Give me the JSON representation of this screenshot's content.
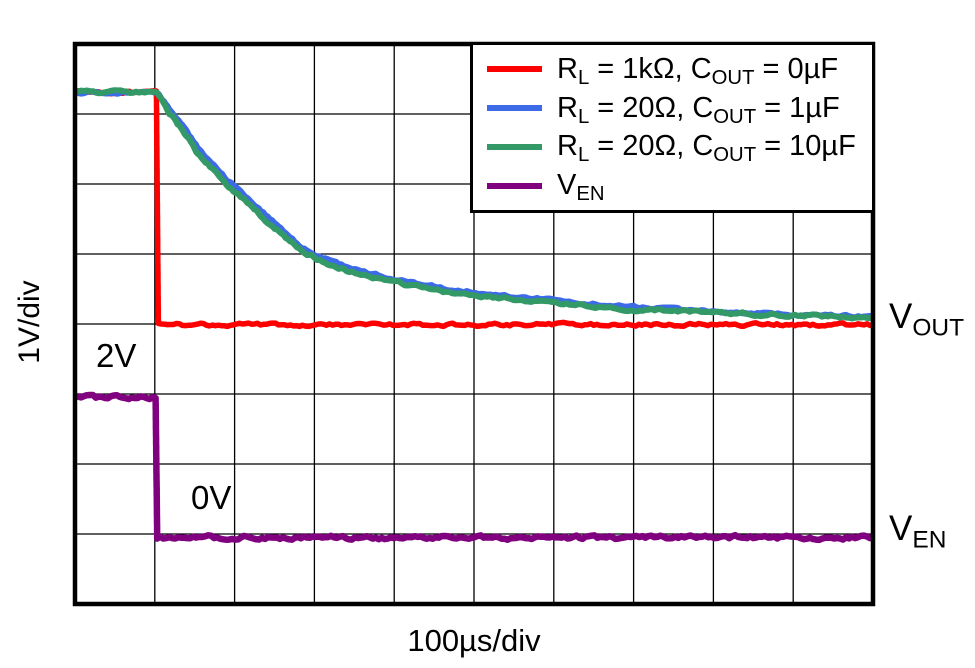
{
  "figure": {
    "ylabel": "1V/div",
    "xlabel": "100µs/div",
    "en_high_label": "2V",
    "en_low_label": "0V",
    "vout_label": {
      "base": "V",
      "sub": "OUT"
    },
    "ven_label": {
      "base": "V",
      "sub": "EN"
    }
  },
  "chart_data": {
    "type": "line",
    "title": "",
    "xlabel": "100µs/div",
    "ylabel": "1V/div",
    "x_divisions": 10,
    "y_divisions": 8,
    "time_per_div": "100µs",
    "volts_per_div": "1V",
    "grid": true,
    "legend_position": "top-right",
    "background": "#ffffff",
    "grid_color": "#000000",
    "enable_step_time_div": 1.0,
    "vout_initial_volts": 3.3,
    "ven_high_volts": 2.0,
    "ven_low_volts": 0.0,
    "series": [
      {
        "id": "vout-rl1k-cout0uf",
        "name": "RL = 1kΩ, COUT = 0µF",
        "label_segments": [
          {
            "t": "R"
          },
          {
            "t": "L",
            "sub": true
          },
          {
            "t": " = 1kΩ, C"
          },
          {
            "t": "OUT",
            "sub": true
          },
          {
            "t": " = 0µF"
          }
        ],
        "color": "#FF0000",
        "stroke_width": 5.5,
        "noise": 2.4,
        "zero_div_from_top": 4.01,
        "points_div_volts": [
          [
            0,
            3.32
          ],
          [
            1.02,
            3.32
          ],
          [
            1.045,
            0.0
          ],
          [
            10,
            0.0
          ]
        ]
      },
      {
        "id": "vout-rl20-cout1uf",
        "name": "RL = 20Ω, COUT = 1µF",
        "label_segments": [
          {
            "t": "R"
          },
          {
            "t": "L",
            "sub": true
          },
          {
            "t": " = 20Ω, C"
          },
          {
            "t": "OUT",
            "sub": true
          },
          {
            "t": " = 1µF"
          }
        ],
        "color": "#3D6BE8",
        "stroke_width": 5.5,
        "noise": 2.0,
        "zero_div_from_top": 4.01,
        "points_div_volts": [
          [
            0,
            3.32
          ],
          [
            1.03,
            3.32
          ],
          [
            1.2,
            3.05
          ],
          [
            1.35,
            2.85
          ],
          [
            1.56,
            2.5
          ],
          [
            1.9,
            2.08
          ],
          [
            2.19,
            1.79
          ],
          [
            2.5,
            1.45
          ],
          [
            2.81,
            1.14
          ],
          [
            3.1,
            0.96
          ],
          [
            3.44,
            0.81
          ],
          [
            4.06,
            0.64
          ],
          [
            4.69,
            0.51
          ],
          [
            5.31,
            0.43
          ],
          [
            5.94,
            0.36
          ],
          [
            6.56,
            0.29
          ],
          [
            7.19,
            0.24
          ],
          [
            7.81,
            0.2
          ],
          [
            8.44,
            0.17
          ],
          [
            9.06,
            0.14
          ],
          [
            10,
            0.12
          ]
        ]
      },
      {
        "id": "vout-rl20-cout10uf",
        "name": "RL = 20Ω, COUT = 10µF",
        "label_segments": [
          {
            "t": "R"
          },
          {
            "t": "L",
            "sub": true
          },
          {
            "t": " = 20Ω, C"
          },
          {
            "t": "OUT",
            "sub": true
          },
          {
            "t": " = 10µF"
          }
        ],
        "color": "#339966",
        "stroke_width": 6,
        "noise": 2.4,
        "zero_div_from_top": 4.01,
        "points_div_volts": [
          [
            0,
            3.32
          ],
          [
            1.03,
            3.32
          ],
          [
            1.2,
            3.0
          ],
          [
            1.35,
            2.78
          ],
          [
            1.56,
            2.42
          ],
          [
            1.9,
            2.0
          ],
          [
            2.19,
            1.71
          ],
          [
            2.5,
            1.38
          ],
          [
            2.81,
            1.08
          ],
          [
            3.1,
            0.9
          ],
          [
            3.44,
            0.76
          ],
          [
            4.06,
            0.59
          ],
          [
            4.69,
            0.46
          ],
          [
            5.31,
            0.38
          ],
          [
            5.94,
            0.31
          ],
          [
            6.56,
            0.25
          ],
          [
            7.19,
            0.21
          ],
          [
            7.81,
            0.18
          ],
          [
            8.44,
            0.15
          ],
          [
            9.06,
            0.13
          ],
          [
            10,
            0.11
          ]
        ]
      },
      {
        "id": "ven",
        "name": "VEN",
        "label_segments": [
          {
            "t": "V"
          },
          {
            "t": "EN",
            "sub": true
          }
        ],
        "color": "#800080",
        "stroke_width": 6.5,
        "noise": 3.2,
        "zero_div_from_top": 7.05,
        "points_div_volts": [
          [
            0,
            2.0
          ],
          [
            1.01,
            2.0
          ],
          [
            1.03,
            0.0
          ],
          [
            10,
            0.0
          ]
        ]
      }
    ],
    "annotations": [
      {
        "text": "2V",
        "refers_to": "ven",
        "x_div": 0.35,
        "volts": 2.0
      },
      {
        "text": "0V",
        "refers_to": "ven",
        "x_div": 1.55,
        "volts": 0.0
      }
    ],
    "right_trace_labels": [
      {
        "text": "VOUT",
        "series_group": "VOUT"
      },
      {
        "text": "VEN",
        "series_group": "VEN"
      }
    ]
  }
}
